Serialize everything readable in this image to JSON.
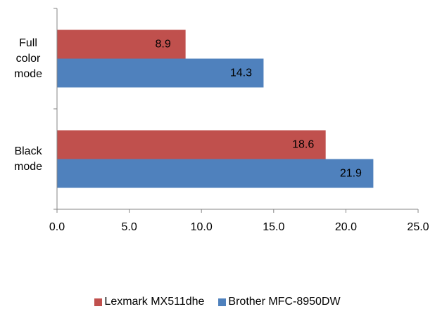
{
  "chart_data": {
    "type": "bar",
    "orientation": "horizontal",
    "categories": [
      [
        "Full",
        "color",
        "mode"
      ],
      [
        "Black",
        "mode"
      ]
    ],
    "series": [
      {
        "name": "Lexmark MX511dhe",
        "color": "#c0504d",
        "values": [
          8.9,
          18.6
        ],
        "labels": [
          "8.9",
          "18.6"
        ]
      },
      {
        "name": "Brother MFC-8950DW",
        "color": "#4f81bd",
        "values": [
          14.3,
          21.9
        ],
        "labels": [
          "14.3",
          "21.9"
        ]
      }
    ],
    "xlim": [
      0,
      25
    ],
    "xticks": [
      0,
      5,
      10,
      15,
      20,
      25
    ],
    "xtick_labels": [
      "0.0",
      "5.0",
      "10.0",
      "15.0",
      "20.0",
      "25.0"
    ],
    "title": "",
    "xlabel": "",
    "ylabel": "",
    "grid": false,
    "legend": "bottom"
  }
}
